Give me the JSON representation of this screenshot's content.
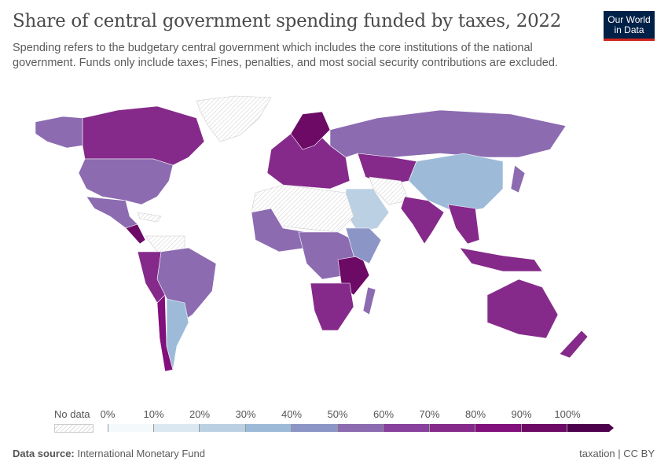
{
  "header": {
    "title": "Share of central government spending funded by taxes, 2022",
    "subtitle": "Spending refers to the budgetary central government which includes the core institutions of the national government. Funds only include taxes; Fines, penalties, and most social security contributions are excluded.",
    "logo_text": "Our World in Data"
  },
  "chart_data": {
    "type": "map",
    "title": "Share of central government spending funded by taxes, 2022",
    "legend": {
      "no_data_label": "No data",
      "no_data_color": "#e6e6e6",
      "ticks": [
        "0%",
        "10%",
        "20%",
        "30%",
        "40%",
        "50%",
        "60%",
        "70%",
        "80%",
        "90%",
        "100%"
      ],
      "bins": [
        {
          "from": 0,
          "to": 10,
          "color": "#f4fafc"
        },
        {
          "from": 10,
          "to": 20,
          "color": "#dbe8f1"
        },
        {
          "from": 20,
          "to": 30,
          "color": "#bcd0e4"
        },
        {
          "from": 30,
          "to": 40,
          "color": "#9dbbd9"
        },
        {
          "from": 40,
          "to": 50,
          "color": "#8c96c6"
        },
        {
          "from": 50,
          "to": 60,
          "color": "#8c6bb1"
        },
        {
          "from": 60,
          "to": 70,
          "color": "#88419d"
        },
        {
          "from": 70,
          "to": 80,
          "color": "#852a8a"
        },
        {
          "from": 80,
          "to": 90,
          "color": "#810f7c"
        },
        {
          "from": 90,
          "to": 100,
          "color": "#6c0a66"
        },
        {
          "from": 100,
          "to": null,
          "color": "#4d004b"
        }
      ]
    }
  },
  "footer": {
    "source_label": "Data source:",
    "source": "International Monetary Fund",
    "right": "taxation | CC BY"
  }
}
